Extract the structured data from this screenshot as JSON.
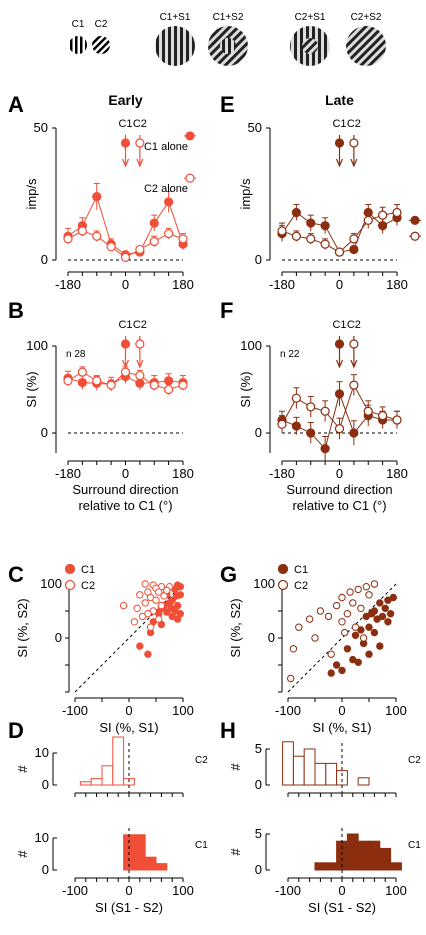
{
  "stimuli": [
    {
      "label": "C1"
    },
    {
      "label": "C2"
    },
    {
      "label": "C1+S1"
    },
    {
      "label": "C1+S2"
    },
    {
      "label": "C2+S1"
    },
    {
      "label": "C2+S2"
    }
  ],
  "colors": {
    "early": "#f04e37",
    "late": "#8b2e0f"
  },
  "chart_data": [
    {
      "panel": "A",
      "title": "Early",
      "type": "line",
      "x": [
        -180,
        -135,
        -90,
        -45,
        0,
        45,
        90,
        135,
        180
      ],
      "ylabel": "imp/s",
      "ylim": [
        0,
        50
      ],
      "xlim": [
        -180,
        180
      ],
      "yticks": [
        0,
        50
      ],
      "xticks": [
        -180,
        0,
        180
      ],
      "arrows": [
        "C1",
        "C2"
      ],
      "legend": [
        "C1 alone",
        "C2 alone"
      ],
      "series": [
        {
          "name": "C1",
          "values": [
            9,
            13,
            24,
            6,
            2,
            3,
            14,
            22,
            6
          ],
          "errors": [
            3,
            3,
            5,
            2,
            1,
            1,
            3,
            4,
            2
          ],
          "filled": true,
          "alone": 47
        },
        {
          "name": "C2",
          "values": [
            8,
            11,
            9,
            5,
            1,
            4,
            7,
            10,
            8
          ],
          "errors": [
            2,
            2,
            2,
            1,
            1,
            1,
            2,
            2,
            2
          ],
          "filled": false,
          "alone": 31
        }
      ]
    },
    {
      "panel": "E",
      "title": "Late",
      "type": "line",
      "x": [
        -180,
        -135,
        -90,
        -45,
        0,
        45,
        90,
        135,
        180
      ],
      "ylabel": "imp/s",
      "ylim": [
        0,
        50
      ],
      "xlim": [
        -180,
        180
      ],
      "yticks": [
        0,
        50
      ],
      "xticks": [
        -180,
        0,
        180
      ],
      "arrows": [
        "C1",
        "C2"
      ],
      "series": [
        {
          "name": "C1",
          "values": [
            10,
            18,
            14,
            13,
            3,
            4,
            18,
            13,
            16
          ],
          "errors": [
            3,
            3,
            3,
            3,
            1,
            1,
            3,
            3,
            3
          ],
          "filled": true,
          "alone": 15
        },
        {
          "name": "C2",
          "values": [
            11,
            9,
            8,
            6,
            3,
            8,
            15,
            17,
            18
          ],
          "errors": [
            3,
            2,
            2,
            2,
            1,
            2,
            3,
            3,
            3
          ],
          "filled": false,
          "alone": 9
        }
      ]
    },
    {
      "panel": "B",
      "type": "line",
      "n_label": "n 28",
      "x": [
        -180,
        -135,
        -90,
        -45,
        0,
        45,
        90,
        135,
        180
      ],
      "ylabel": "SI (%)",
      "ylim": [
        -20,
        100
      ],
      "xlim": [
        -180,
        180
      ],
      "yticks": [
        0,
        100
      ],
      "xticks": [
        -180,
        0,
        180
      ],
      "xlabel": "Surround direction relative to C1 (°)",
      "arrows": [
        "C1",
        "C2"
      ],
      "series": [
        {
          "name": "C1",
          "values": [
            63,
            58,
            57,
            56,
            65,
            57,
            58,
            60,
            58
          ],
          "errors": [
            8,
            8,
            8,
            8,
            8,
            8,
            8,
            8,
            8
          ],
          "filled": true,
          "alone": 118
        },
        {
          "name": "C2",
          "values": [
            60,
            70,
            60,
            55,
            70,
            66,
            55,
            50,
            55
          ],
          "errors": [
            6,
            6,
            6,
            6,
            6,
            6,
            6,
            6,
            6
          ],
          "filled": false,
          "alone": 118
        }
      ]
    },
    {
      "panel": "F",
      "type": "line",
      "n_label": "n 22",
      "x": [
        -180,
        -135,
        -90,
        -45,
        0,
        45,
        90,
        135,
        180
      ],
      "ylabel": "SI (%)",
      "ylim": [
        -25,
        100
      ],
      "xlim": [
        -180,
        180
      ],
      "yticks": [
        0,
        100
      ],
      "xticks": [
        -180,
        0,
        180
      ],
      "xlabel": "Surround direction relative to C1 (°)",
      "arrows": [
        "C1",
        "C2"
      ],
      "series": [
        {
          "name": "C1",
          "values": [
            15,
            8,
            0,
            -18,
            45,
            0,
            20,
            15,
            15
          ],
          "errors": [
            10,
            10,
            12,
            14,
            14,
            14,
            12,
            10,
            10
          ],
          "filled": true,
          "alone": 118
        },
        {
          "name": "C2",
          "values": [
            10,
            40,
            30,
            25,
            5,
            55,
            25,
            20,
            15
          ],
          "errors": [
            10,
            12,
            12,
            12,
            12,
            12,
            12,
            10,
            10
          ],
          "filled": false,
          "alone": 118
        }
      ]
    },
    {
      "panel": "C",
      "type": "scatter",
      "xlabel": "SI (%, S1)",
      "ylabel": "SI (%, S2)",
      "xlim": [
        -100,
        100
      ],
      "ylim": [
        -100,
        100
      ],
      "xticks": [
        -100,
        0,
        100
      ],
      "yticks": [
        0,
        100
      ],
      "legend": [
        "C1",
        "C2"
      ],
      "series": [
        {
          "name": "C1",
          "filled": true,
          "points": [
            [
              90,
              98
            ],
            [
              95,
              95
            ],
            [
              85,
              90
            ],
            [
              70,
              85
            ],
            [
              95,
              80
            ],
            [
              88,
              78
            ],
            [
              80,
              70
            ],
            [
              75,
              65
            ],
            [
              90,
              60
            ],
            [
              65,
              60
            ],
            [
              60,
              55
            ],
            [
              78,
              55
            ],
            [
              85,
              50
            ],
            [
              70,
              48
            ],
            [
              55,
              45
            ],
            [
              95,
              45
            ],
            [
              80,
              40
            ],
            [
              45,
              30
            ],
            [
              90,
              35
            ],
            [
              60,
              25
            ],
            [
              40,
              10
            ],
            [
              20,
              -15
            ],
            [
              35,
              -30
            ],
            [
              70,
              80
            ]
          ]
        },
        {
          "name": "C2",
          "filled": false,
          "points": [
            [
              30,
              100
            ],
            [
              45,
              98
            ],
            [
              60,
              95
            ],
            [
              50,
              92
            ],
            [
              75,
              95
            ],
            [
              35,
              85
            ],
            [
              55,
              85
            ],
            [
              20,
              80
            ],
            [
              65,
              78
            ],
            [
              40,
              75
            ],
            [
              50,
              70
            ],
            [
              30,
              65
            ],
            [
              60,
              60
            ],
            [
              15,
              55
            ],
            [
              45,
              50
            ],
            [
              35,
              45
            ],
            [
              -10,
              60
            ],
            [
              25,
              40
            ],
            [
              55,
              35
            ],
            [
              10,
              30
            ],
            [
              40,
              20
            ],
            [
              70,
              88
            ]
          ]
        }
      ]
    },
    {
      "panel": "G",
      "type": "scatter",
      "xlabel": "SI (%, S1)",
      "ylabel": "SI (%, S2)",
      "xlim": [
        -100,
        100
      ],
      "ylim": [
        -100,
        100
      ],
      "xticks": [
        -100,
        0,
        100
      ],
      "yticks": [
        0,
        100
      ],
      "legend": [
        "C1",
        "C2"
      ],
      "series": [
        {
          "name": "C1",
          "filled": true,
          "points": [
            [
              95,
              75
            ],
            [
              85,
              70
            ],
            [
              70,
              65
            ],
            [
              80,
              55
            ],
            [
              60,
              50
            ],
            [
              90,
              45
            ],
            [
              55,
              45
            ],
            [
              75,
              40
            ],
            [
              45,
              40
            ],
            [
              65,
              35
            ],
            [
              85,
              30
            ],
            [
              50,
              20
            ],
            [
              35,
              15
            ],
            [
              60,
              10
            ],
            [
              25,
              5
            ],
            [
              40,
              -10
            ],
            [
              70,
              -15
            ],
            [
              50,
              -30
            ],
            [
              20,
              -40
            ],
            [
              30,
              -45
            ],
            [
              -10,
              -50
            ],
            [
              0,
              -60
            ],
            [
              -20,
              -65
            ],
            [
              10,
              -20
            ]
          ]
        },
        {
          "name": "C2",
          "filled": false,
          "points": [
            [
              60,
              100
            ],
            [
              45,
              95
            ],
            [
              30,
              90
            ],
            [
              15,
              85
            ],
            [
              50,
              80
            ],
            [
              0,
              75
            ],
            [
              20,
              65
            ],
            [
              -10,
              60
            ],
            [
              35,
              55
            ],
            [
              -40,
              50
            ],
            [
              10,
              45
            ],
            [
              -25,
              40
            ],
            [
              -60,
              35
            ],
            [
              0,
              30
            ],
            [
              -80,
              20
            ],
            [
              25,
              20
            ],
            [
              -50,
              0
            ],
            [
              -90,
              -20
            ],
            [
              5,
              10
            ],
            [
              40,
              0
            ],
            [
              -20,
              -30
            ],
            [
              -95,
              -75
            ]
          ]
        }
      ]
    },
    {
      "panel": "D",
      "type": "bar",
      "histograms": [
        {
          "label": "C2",
          "ylabel": "#",
          "yticks": [
            0,
            10
          ],
          "ymax": 10,
          "filled": false,
          "bins": [
            -80,
            -60,
            -40,
            -20,
            0,
            20,
            40,
            60,
            80
          ],
          "counts": [
            1,
            2,
            6,
            15,
            2,
            0,
            0,
            0,
            0
          ]
        },
        {
          "label": "C1",
          "ylabel": "#",
          "yticks": [
            0,
            10
          ],
          "ymax": 10,
          "filled": true,
          "bins": [
            -80,
            -60,
            -40,
            -20,
            0,
            20,
            40,
            60,
            80
          ],
          "counts": [
            0,
            0,
            0,
            0,
            11,
            11,
            4,
            2,
            0
          ]
        }
      ],
      "xlabel": "SI (S1 - S2)",
      "xticks": [
        -100,
        0,
        100
      ]
    },
    {
      "panel": "H",
      "type": "bar",
      "histograms": [
        {
          "label": "C2",
          "ylabel": "#",
          "yticks": [
            0,
            5
          ],
          "ymax": 5,
          "filled": false,
          "bins": [
            -100,
            -80,
            -60,
            -40,
            -20,
            0,
            20,
            40,
            60,
            80,
            100
          ],
          "counts": [
            6,
            4,
            5,
            3,
            3,
            2,
            0,
            1,
            0,
            0,
            0
          ]
        },
        {
          "label": "C1",
          "ylabel": "#",
          "yticks": [
            0,
            5
          ],
          "ymax": 5,
          "filled": true,
          "bins": [
            -100,
            -80,
            -60,
            -40,
            -20,
            0,
            20,
            40,
            60,
            80,
            100
          ],
          "counts": [
            0,
            0,
            0,
            1,
            1,
            4,
            5,
            4,
            4,
            3,
            1
          ]
        }
      ],
      "xlabel": "SI (S1 - S2)",
      "xticks": [
        -100,
        0,
        100
      ]
    }
  ]
}
